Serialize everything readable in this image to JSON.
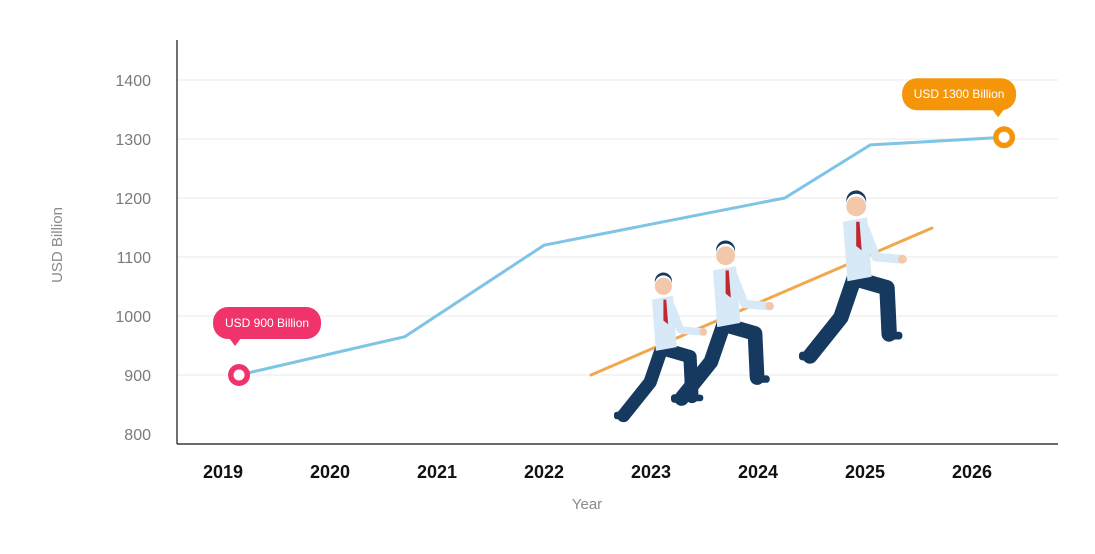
{
  "chart_data": {
    "type": "line",
    "xlabel": "Year",
    "ylabel": "USD Billion",
    "ylim": [
      800,
      1400
    ],
    "yticks": [
      800,
      900,
      1000,
      1100,
      1200,
      1300,
      1400
    ],
    "categories": [
      "2019",
      "2020",
      "2021",
      "2022",
      "2023",
      "2024",
      "2025",
      "2026"
    ],
    "series": [
      {
        "x": [
          2019.15,
          2020.7,
          2022.0,
          2024.25,
          2025.05,
          2026.3
        ],
        "values": [
          900,
          965,
          1120,
          1200,
          1290,
          1303
        ],
        "color": "#7ec4e6"
      }
    ],
    "annotations": [
      {
        "text": "USD 900 Billion",
        "x": 2019.15,
        "y": 900,
        "color": "#f0346b"
      },
      {
        "text": "USD 1300 Billion",
        "x": 2026.3,
        "y": 1303,
        "color": "#f5960a"
      }
    ],
    "grid": true,
    "legend": "none"
  },
  "illustration": {
    "description_icon": "business-team-pulling-rope-icon",
    "colors": {
      "rope": "#f0a84e",
      "pants": "#163a5f",
      "shirt": "#d7e9f7",
      "tie": "#c0282d",
      "skin": "#f3c7a9"
    }
  }
}
